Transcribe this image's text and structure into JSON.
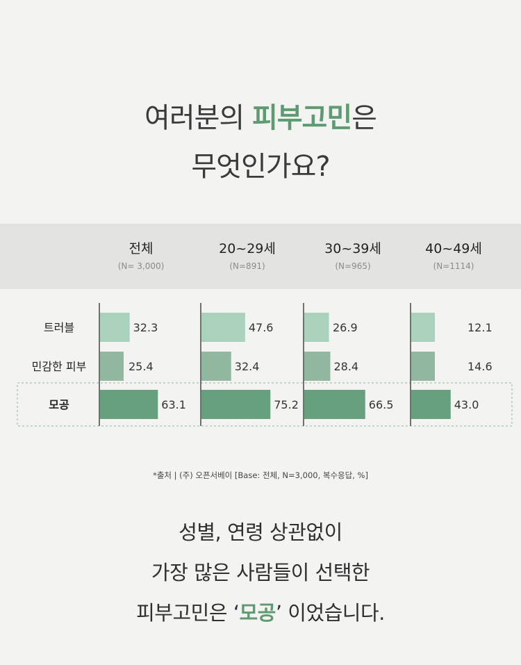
{
  "headline": {
    "line1_before": "여러분의 ",
    "line1_accent": "피부고민",
    "line1_after": "은",
    "line2": "무엇인가요?"
  },
  "colors": {
    "accent": "#5e9a72",
    "bar_light": "#a9d1bc",
    "bar_mid": "#92b7a0",
    "bar_dark": "#67a07f",
    "header_band": "#e3e3e1"
  },
  "chart_data": {
    "type": "bar",
    "orientation": "horizontal",
    "groups": [
      {
        "label": "전체",
        "n": "(N= 3,000)"
      },
      {
        "label": "20~29세",
        "n": "(N=891)"
      },
      {
        "label": "30~39세",
        "n": "(N=965)"
      },
      {
        "label": "40~49세",
        "n": "(N=1114)"
      }
    ],
    "categories": [
      "트러블",
      "민감한 피부",
      "모공"
    ],
    "highlighted_category": "모공",
    "values": [
      [
        "32.3",
        "25.4",
        "63.1"
      ],
      [
        "47.6",
        "32.4",
        "75.2"
      ],
      [
        "26.9",
        "28.4",
        "66.5"
      ],
      [
        "12.1",
        "14.6",
        "43.0"
      ]
    ],
    "unit": "%"
  },
  "source": "*출처 | (주) 오픈서베이 [Base: 전체, N=3,000, 복수응답, %]",
  "conclusion": {
    "line1": "성별, 연령 상관없이",
    "line2": "가장 많은 사람들이 선택한",
    "line3_before": "피부고민은 ‘",
    "line3_accent": "모공",
    "line3_after": "’ 이었습니다."
  }
}
